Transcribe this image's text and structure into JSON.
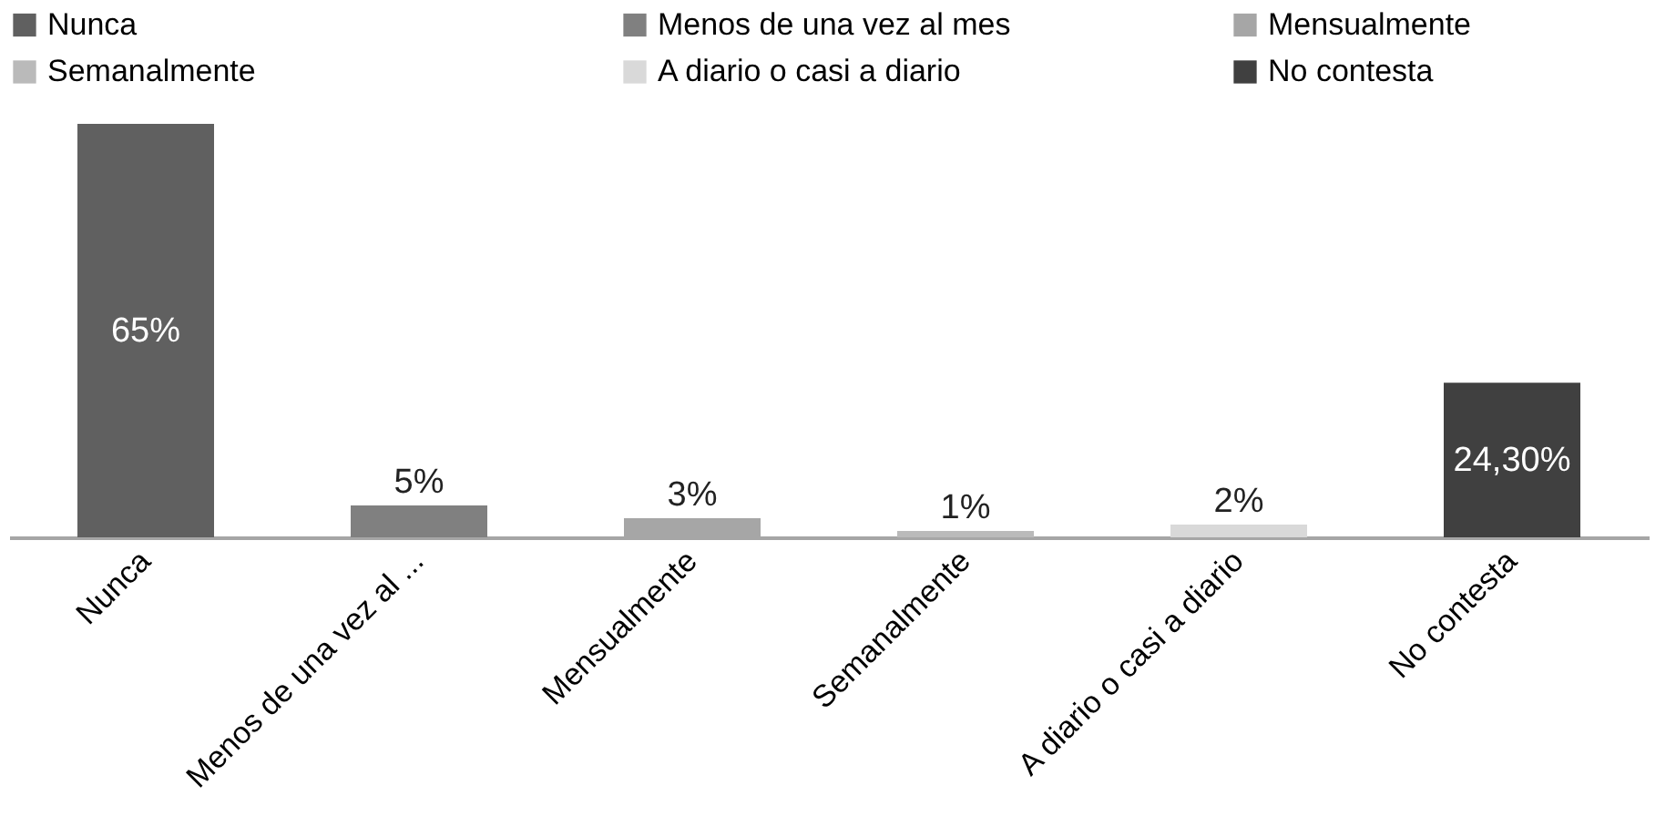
{
  "chart_data": {
    "type": "bar",
    "stacked": true,
    "legend": "top",
    "tick_labels": "x",
    "categories": [
      "Nunca",
      "Menos de una vez al ...",
      "Mensualmente",
      "Semanalmente",
      "A diario o casi a diario",
      "No contesta"
    ],
    "series": [
      {
        "name": "Nunca",
        "color": "#606060",
        "values": [
          65,
          null,
          null,
          null,
          null,
          null
        ],
        "value_labels": [
          "65%",
          null,
          null,
          null,
          null,
          null
        ]
      },
      {
        "name": "Menos de una vez al mes",
        "color": "#808080",
        "values": [
          null,
          5,
          null,
          null,
          null,
          null
        ],
        "value_labels": [
          null,
          "5%",
          null,
          null,
          null,
          null
        ]
      },
      {
        "name": "Mensualmente",
        "color": "#a6a6a6",
        "values": [
          null,
          null,
          3,
          null,
          null,
          null
        ],
        "value_labels": [
          null,
          null,
          "3%",
          null,
          null,
          null
        ]
      },
      {
        "name": "Semanalmente",
        "color": "#bababa",
        "values": [
          null,
          null,
          null,
          1,
          null,
          null
        ],
        "value_labels": [
          null,
          null,
          null,
          "1%",
          null,
          null
        ]
      },
      {
        "name": "A diario o casi a diario",
        "color": "#d9d9d9",
        "values": [
          null,
          null,
          null,
          null,
          2,
          null
        ],
        "value_labels": [
          null,
          null,
          null,
          null,
          "2%",
          null
        ]
      },
      {
        "name": "No contesta",
        "color": "#404040",
        "values": [
          null,
          null,
          null,
          null,
          null,
          24.3
        ],
        "value_labels": [
          null,
          null,
          null,
          null,
          null,
          "24,30%"
        ]
      }
    ]
  }
}
